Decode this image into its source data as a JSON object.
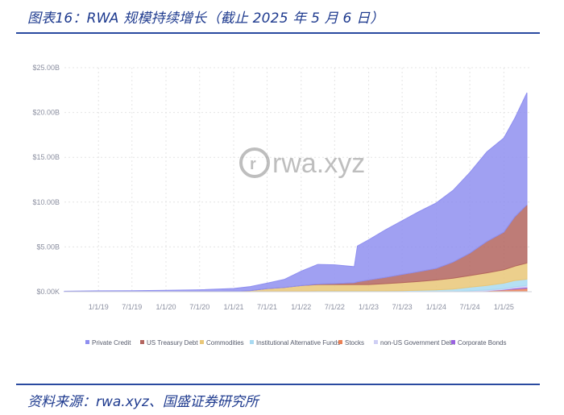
{
  "figure": {
    "title": "图表16：RWA 规模持续增长（截止 2025 年 5 月 6 日）",
    "source": "资料来源：rwa.xyz、国盛证券研究所",
    "watermark": "rwa.xyz"
  },
  "colors": {
    "accent": "#1f3b8f",
    "Private Credit": "#8f8ff0",
    "US Treasury Debt": "#b3655f",
    "Commodities": "#e9c778",
    "Institutional Alternative Funds": "#a8daf2",
    "Stocks": "#ea8055",
    "non-US Government Debt": "#cfcff4",
    "Corporate Bonds": "#9a62e0"
  },
  "chart_data": {
    "type": "area",
    "stacked": true,
    "x_tick_labels": [
      "1/1/19",
      "7/1/19",
      "1/1/20",
      "7/1/20",
      "1/1/21",
      "7/1/21",
      "1/1/22",
      "7/1/22",
      "1/1/23",
      "7/1/23",
      "1/1/24",
      "7/1/24",
      "1/1/25"
    ],
    "y_tick_labels": [
      "$0.00K",
      "$5.00B",
      "$10.00B",
      "$15.00B",
      "$20.00B",
      "$25.00B"
    ],
    "ylim": [
      0,
      25
    ],
    "y_unit": "B USD",
    "grid": true,
    "legend_position": "bottom",
    "x": [
      "2018-07-01",
      "2019-01-01",
      "2019-07-01",
      "2020-01-01",
      "2020-07-01",
      "2021-01-01",
      "2021-04-01",
      "2021-07-01",
      "2021-10-01",
      "2022-01-01",
      "2022-04-01",
      "2022-07-01",
      "2022-10-15",
      "2022-11-01",
      "2023-01-01",
      "2023-04-01",
      "2023-07-01",
      "2023-10-01",
      "2024-01-01",
      "2024-04-01",
      "2024-07-01",
      "2024-10-01",
      "2025-01-01",
      "2025-03-01",
      "2025-05-06"
    ],
    "series": [
      {
        "name": "Stocks",
        "values": [
          0,
          0,
          0,
          0,
          0,
          0,
          0,
          0,
          0,
          0,
          0,
          0,
          0,
          0,
          0,
          0,
          0,
          0,
          0,
          0,
          0.05,
          0.1,
          0.2,
          0.3,
          0.4
        ]
      },
      {
        "name": "Corporate Bonds",
        "values": [
          0,
          0,
          0,
          0,
          0,
          0,
          0,
          0,
          0,
          0,
          0,
          0,
          0,
          0,
          0,
          0,
          0,
          0,
          0,
          0,
          0,
          0,
          0.05,
          0.1,
          0.1
        ]
      },
      {
        "name": "non-US Government Debt",
        "values": [
          0,
          0,
          0,
          0,
          0,
          0,
          0,
          0,
          0,
          0,
          0,
          0,
          0,
          0,
          0,
          0,
          0,
          0,
          0,
          0,
          0.05,
          0.1,
          0.1,
          0.15,
          0.2
        ]
      },
      {
        "name": "Institutional Alternative Funds",
        "values": [
          0,
          0,
          0,
          0,
          0,
          0.01,
          0.03,
          0.05,
          0.07,
          0.08,
          0.1,
          0.1,
          0.1,
          0.1,
          0.1,
          0.1,
          0.12,
          0.15,
          0.2,
          0.3,
          0.4,
          0.5,
          0.6,
          0.7,
          0.7
        ]
      },
      {
        "name": "Commodities",
        "values": [
          0,
          0,
          0,
          0,
          0.02,
          0.05,
          0.1,
          0.3,
          0.4,
          0.6,
          0.7,
          0.7,
          0.7,
          0.7,
          0.7,
          0.8,
          0.9,
          1.0,
          1.1,
          1.2,
          1.3,
          1.4,
          1.5,
          1.6,
          1.8
        ]
      },
      {
        "name": "US Treasury Debt",
        "values": [
          0,
          0,
          0,
          0,
          0,
          0,
          0,
          0,
          0,
          0,
          0.05,
          0.1,
          0.2,
          0.3,
          0.5,
          0.7,
          0.9,
          1.1,
          1.3,
          1.8,
          2.5,
          3.5,
          4.2,
          5.5,
          6.5
        ]
      },
      {
        "name": "Private Credit",
        "values": [
          0.05,
          0.1,
          0.12,
          0.15,
          0.2,
          0.3,
          0.45,
          0.6,
          0.9,
          1.6,
          2.2,
          2.1,
          1.8,
          4.0,
          4.5,
          5.3,
          6.0,
          6.7,
          7.3,
          8.0,
          9.0,
          10.0,
          10.5,
          11.0,
          12.5
        ]
      }
    ],
    "legend_order": [
      "Private Credit",
      "US Treasury Debt",
      "Commodities",
      "Institutional Alternative Funds",
      "Stocks",
      "non-US Government Debt",
      "Corporate Bonds"
    ]
  }
}
